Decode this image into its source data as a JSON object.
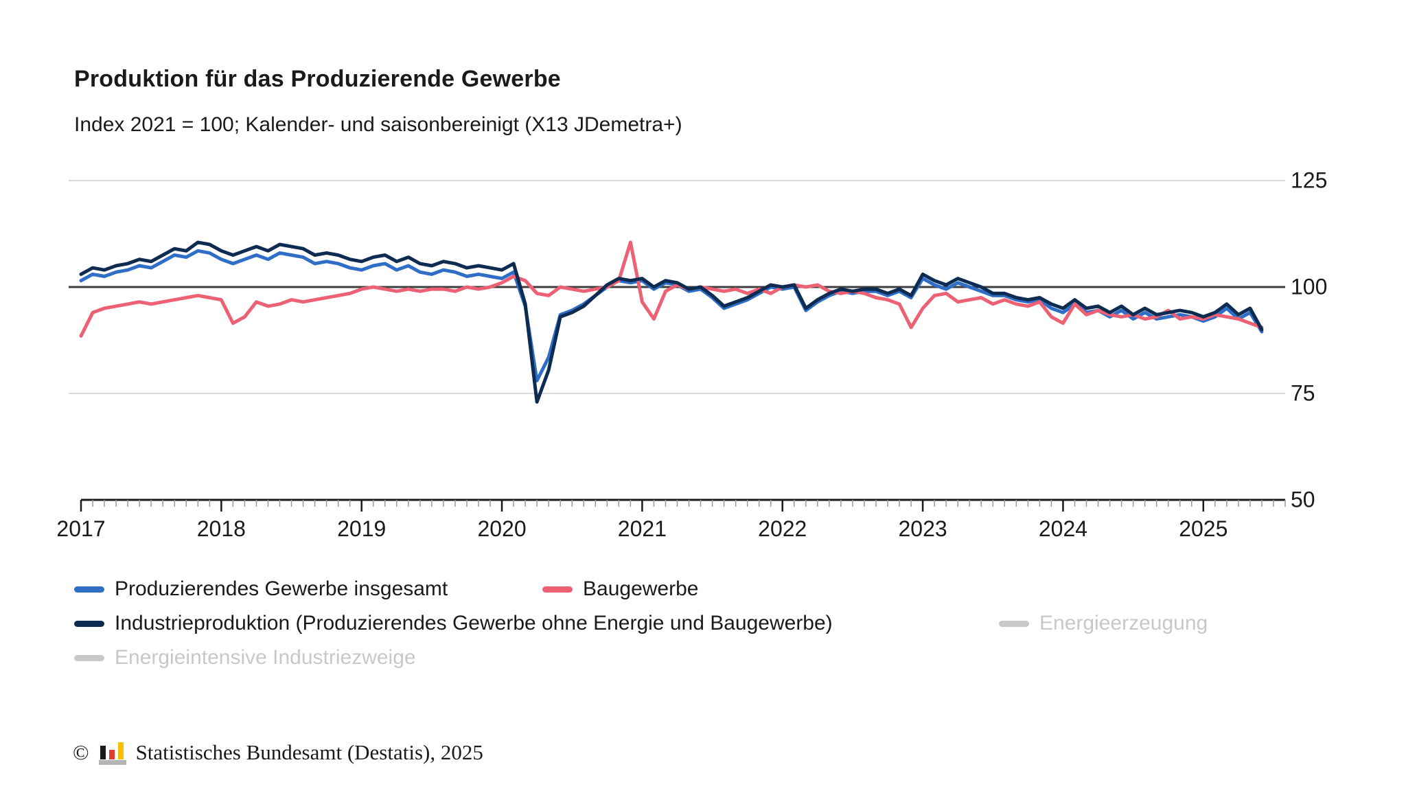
{
  "title": "Produktion für das Produzierende Gewerbe",
  "subtitle": "Index 2021 = 100; Kalender- und saisonbereinigt (X13 JDemetra+)",
  "footer": {
    "copyright_symbol": "©",
    "source_text": "Statistisches Bundesamt (Destatis), 2025",
    "logo_icon": "destatis-bar-chart-logo"
  },
  "colors": {
    "blue": "#2f6ec7",
    "red": "#ec6173",
    "navy": "#0e2b52",
    "inactive": "#c8c8c8",
    "grid_light": "#d9d9d9",
    "reference_line": "#3d3d3d",
    "axis": "#1a1a1a",
    "tick_minor": "#9a9a9a",
    "text": "#1a1a1a"
  },
  "legend": [
    {
      "label": "Produzierendes Gewerbe insgesamt",
      "color": "#2f6ec7",
      "active": true
    },
    {
      "label": "Baugewerbe",
      "color": "#ec6173",
      "active": true
    },
    {
      "label": "Industrieproduktion (Produzierendes Gewerbe ohne Energie und Baugewerbe)",
      "color": "#0e2b52",
      "active": true
    },
    {
      "label": "Energieerzeugung",
      "color": "#c8c8c8",
      "active": false
    },
    {
      "label": "Energieintensive Industriezweige",
      "color": "#c8c8c8",
      "active": false
    }
  ],
  "chart_data": {
    "type": "line",
    "title": "Produktion für das Produzierende Gewerbe",
    "subtitle": "Index 2021 = 100; Kalender- und saisonbereinigt (X13 JDemetra+)",
    "x_start": "2017-01",
    "x_frequency": "monthly",
    "x_axis_years": [
      "2017",
      "2018",
      "2019",
      "2020",
      "2021",
      "2022",
      "2023",
      "2024",
      "2025"
    ],
    "x_axis_total_months": 103,
    "ylim": [
      50,
      125
    ],
    "yticks": [
      125,
      100,
      75,
      50
    ],
    "gridlines_light": [
      125,
      75
    ],
    "reference_line": 100,
    "grid": true,
    "legend_position": "bottom",
    "series": [
      {
        "name": "Produzierendes Gewerbe insgesamt",
        "color": "#2f6ec7",
        "active": true,
        "values": [
          101.5,
          103.0,
          102.5,
          103.5,
          104.0,
          105.0,
          104.5,
          106.0,
          107.5,
          107.0,
          108.5,
          108.0,
          106.5,
          105.5,
          106.5,
          107.5,
          106.5,
          108.0,
          107.5,
          107.0,
          105.5,
          106.0,
          105.5,
          104.5,
          104.0,
          105.0,
          105.5,
          104.0,
          105.0,
          103.5,
          103.0,
          104.0,
          103.5,
          102.5,
          103.0,
          102.5,
          102.0,
          103.5,
          95.5,
          78.0,
          83.5,
          93.5,
          94.5,
          96.0,
          98.0,
          100.0,
          101.5,
          101.0,
          101.5,
          99.5,
          101.0,
          100.5,
          99.0,
          99.5,
          97.5,
          95.0,
          96.0,
          97.0,
          98.5,
          100.0,
          99.5,
          100.0,
          94.5,
          96.5,
          98.0,
          99.0,
          98.5,
          99.0,
          99.0,
          98.0,
          99.0,
          97.5,
          102.0,
          100.5,
          99.5,
          101.0,
          100.0,
          99.0,
          98.0,
          98.0,
          97.0,
          96.5,
          97.0,
          95.0,
          94.0,
          96.0,
          94.0,
          94.5,
          93.0,
          94.5,
          92.5,
          94.0,
          92.5,
          93.0,
          93.5,
          93.0,
          92.0,
          93.0,
          95.0,
          92.5,
          94.0,
          89.5
        ]
      },
      {
        "name": "Baugewerbe",
        "color": "#ec6173",
        "active": true,
        "values": [
          88.5,
          94.0,
          95.0,
          95.5,
          96.0,
          96.5,
          96.0,
          96.5,
          97.0,
          97.5,
          98.0,
          97.5,
          97.0,
          91.5,
          93.0,
          96.5,
          95.5,
          96.0,
          97.0,
          96.5,
          97.0,
          97.5,
          98.0,
          98.5,
          99.5,
          100.0,
          99.5,
          99.0,
          99.5,
          99.0,
          99.5,
          99.5,
          99.0,
          100.0,
          99.5,
          100.0,
          101.0,
          102.5,
          101.5,
          98.5,
          98.0,
          100.0,
          99.5,
          99.0,
          99.5,
          100.0,
          101.5,
          110.5,
          96.5,
          92.5,
          99.0,
          100.5,
          99.5,
          100.0,
          99.5,
          99.0,
          99.5,
          98.5,
          99.5,
          98.5,
          100.0,
          100.5,
          100.0,
          100.5,
          99.0,
          98.5,
          99.0,
          98.5,
          97.5,
          97.0,
          96.0,
          90.5,
          95.0,
          98.0,
          98.5,
          96.5,
          97.0,
          97.5,
          96.0,
          97.0,
          96.0,
          95.5,
          96.5,
          93.0,
          91.5,
          96.0,
          93.5,
          94.5,
          93.5,
          93.0,
          93.5,
          92.5,
          93.0,
          94.5,
          92.5,
          93.0,
          92.5,
          93.5,
          93.0,
          92.5,
          91.5,
          90.5
        ]
      },
      {
        "name": "Industrieproduktion (Produzierendes Gewerbe ohne Energie und Baugewerbe)",
        "color": "#0e2b52",
        "active": true,
        "values": [
          103.0,
          104.5,
          104.0,
          105.0,
          105.5,
          106.5,
          106.0,
          107.5,
          109.0,
          108.5,
          110.5,
          110.0,
          108.5,
          107.5,
          108.5,
          109.5,
          108.5,
          110.0,
          109.5,
          109.0,
          107.5,
          108.0,
          107.5,
          106.5,
          106.0,
          107.0,
          107.5,
          106.0,
          107.0,
          105.5,
          105.0,
          106.0,
          105.5,
          104.5,
          105.0,
          104.5,
          104.0,
          105.5,
          96.0,
          73.0,
          80.5,
          93.0,
          94.0,
          95.5,
          98.0,
          100.5,
          102.0,
          101.5,
          102.0,
          100.0,
          101.5,
          101.0,
          99.5,
          100.0,
          98.0,
          95.5,
          96.5,
          97.5,
          99.0,
          100.5,
          100.0,
          100.5,
          95.0,
          97.0,
          98.5,
          99.5,
          99.0,
          99.5,
          99.5,
          98.5,
          99.5,
          98.0,
          103.0,
          101.5,
          100.5,
          102.0,
          101.0,
          100.0,
          98.5,
          98.5,
          97.5,
          97.0,
          97.5,
          96.0,
          95.0,
          97.0,
          95.0,
          95.5,
          94.0,
          95.5,
          93.5,
          95.0,
          93.5,
          94.0,
          94.5,
          94.0,
          93.0,
          94.0,
          96.0,
          93.5,
          95.0,
          90.0
        ]
      },
      {
        "name": "Energieerzeugung",
        "color": "#c8c8c8",
        "active": false,
        "values": []
      },
      {
        "name": "Energieintensive Industriezweige",
        "color": "#c8c8c8",
        "active": false,
        "values": []
      }
    ]
  }
}
